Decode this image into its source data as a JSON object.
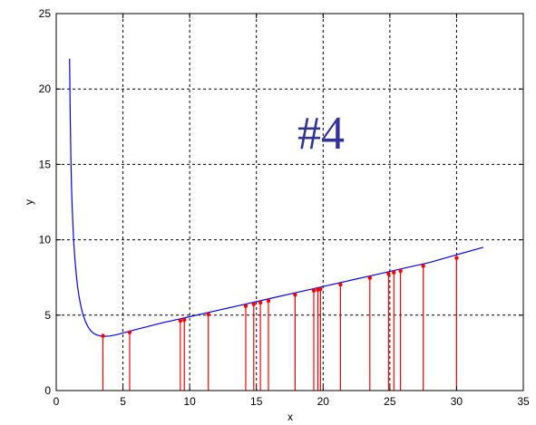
{
  "chart_data": {
    "type": "line",
    "title": "",
    "xlabel": "x",
    "ylabel": "y",
    "xlim": [
      0,
      35
    ],
    "ylim": [
      0,
      25
    ],
    "xticks": [
      "0",
      "5",
      "10",
      "15",
      "20",
      "25",
      "30",
      "35"
    ],
    "yticks": [
      "0",
      "5",
      "10",
      "15",
      "20",
      "25"
    ],
    "grid": true,
    "annotation": "#4",
    "colors": {
      "curve": "#0000ff",
      "stems": "#ff0000",
      "annotation": "#333399"
    },
    "curve": {
      "x": [
        1,
        1.05,
        1.1,
        1.15,
        1.2,
        1.3,
        1.4,
        1.5,
        1.6,
        1.7,
        1.8,
        1.9,
        2.0,
        2.2,
        2.4,
        2.6,
        2.8,
        3.0,
        3.3,
        3.6,
        4.0,
        4.5,
        5.0,
        6,
        7,
        8,
        9,
        10,
        12,
        14,
        16,
        18,
        20,
        22,
        24,
        26,
        28,
        30,
        32
      ],
      "y": [
        22.0,
        18.0,
        15.3,
        13.4,
        12.0,
        10.0,
        8.7,
        7.7,
        6.9,
        6.3,
        5.8,
        5.4,
        5.05,
        4.55,
        4.2,
        3.95,
        3.8,
        3.7,
        3.62,
        3.6,
        3.62,
        3.7,
        3.82,
        4.05,
        4.28,
        4.5,
        4.7,
        4.9,
        5.3,
        5.7,
        6.1,
        6.5,
        6.9,
        7.3,
        7.7,
        8.1,
        8.5,
        9.0,
        9.5
      ]
    },
    "stems": {
      "x": [
        3.5,
        5.5,
        9.3,
        9.6,
        11.4,
        14.2,
        14.8,
        15.3,
        15.9,
        17.9,
        19.3,
        19.6,
        19.8,
        21.3,
        23.5,
        24.9,
        25.3,
        25.8,
        27.5,
        30.0
      ],
      "y": [
        3.63,
        3.86,
        4.63,
        4.69,
        5.05,
        5.61,
        5.73,
        5.83,
        5.95,
        6.35,
        6.63,
        6.69,
        6.73,
        7.03,
        7.47,
        7.75,
        7.83,
        7.93,
        8.27,
        8.8
      ]
    }
  }
}
